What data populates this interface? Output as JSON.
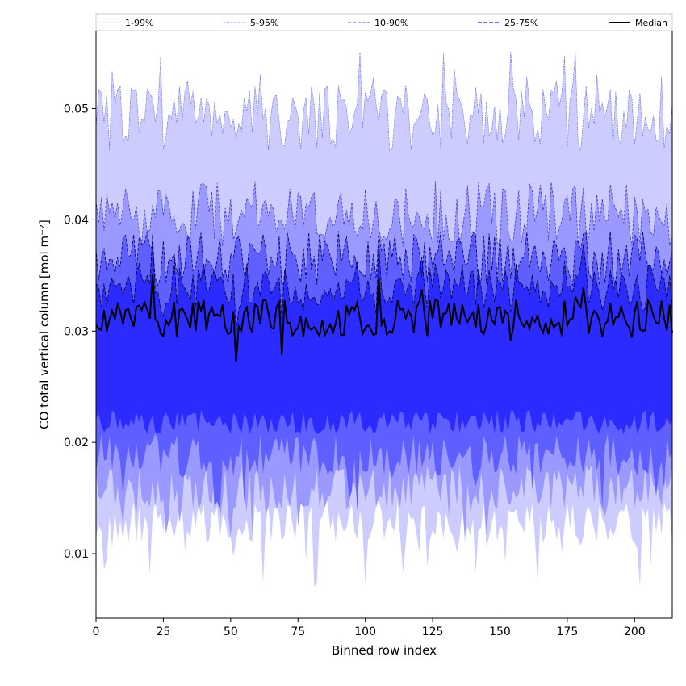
{
  "chart_data": {
    "type": "area",
    "xlabel": "Binned row index",
    "ylabel": "CO total vertical column [mol m⁻²]",
    "xlim": [
      0,
      214
    ],
    "ylim": [
      0.0042,
      0.057
    ],
    "x_ticks": [
      0,
      25,
      50,
      75,
      100,
      125,
      150,
      175,
      200
    ],
    "y_ticks": [
      0.01,
      0.02,
      0.03,
      0.04,
      0.05
    ],
    "y_tick_labels": [
      "0.01",
      "0.02",
      "0.03",
      "0.04",
      "0.05"
    ],
    "legend_position": "top, spanning full width",
    "legend": [
      "1-99%",
      "5-95%",
      "10-90%",
      "25-75%",
      "Median"
    ],
    "colors": {
      "band_1_99": "#ccccff",
      "band_5_95": "#9999ff",
      "band_10_90": "#5f5fff",
      "band_25_75": "#2b2bff",
      "median": "#000000",
      "edge_1_99": "#bbbbff",
      "edge_5_95": "#6a6ae0",
      "edge_10_90": "#3333bb",
      "edge_25_75": "#000066"
    },
    "series_summary": [
      {
        "name": "1-99%",
        "approx_low": 0.013,
        "approx_high": 0.049
      },
      {
        "name": "5-95%",
        "approx_low": 0.016,
        "approx_high": 0.04
      },
      {
        "name": "10-90%",
        "approx_low": 0.018,
        "approx_high": 0.036
      },
      {
        "name": "25-75%",
        "approx_low": 0.021,
        "approx_high": 0.034
      },
      {
        "name": "Median",
        "approx_level": 0.031
      }
    ]
  }
}
